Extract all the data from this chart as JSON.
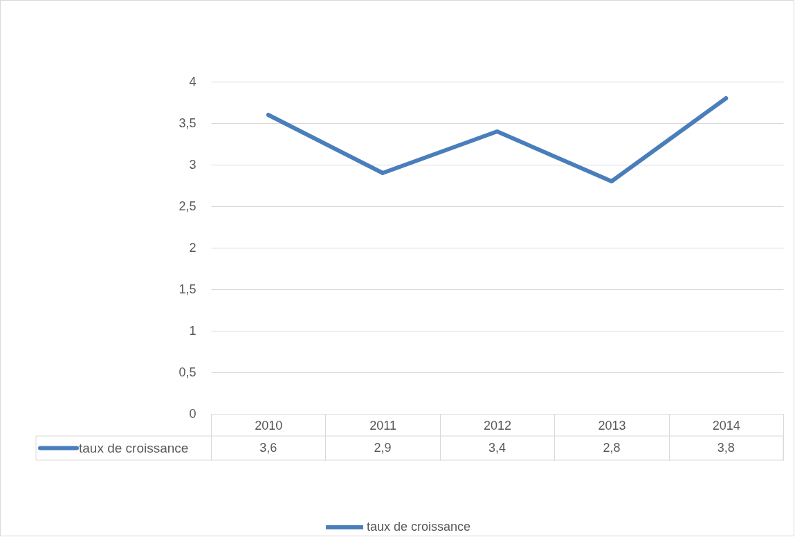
{
  "chart_data": {
    "type": "line",
    "categories": [
      "2010",
      "2011",
      "2012",
      "2013",
      "2014"
    ],
    "series": [
      {
        "name": "taux de croissance",
        "color": "#4a7ebb",
        "values": [
          3.6,
          2.9,
          3.4,
          2.8,
          3.8
        ],
        "value_labels": [
          "3,6",
          "2,9",
          "3,4",
          "2,8",
          "3,8"
        ]
      }
    ],
    "ylim": [
      0,
      4
    ],
    "yticks": [
      0,
      {
        "value": 0.5,
        "label": "0,5"
      },
      1,
      {
        "value": 1.5,
        "label": "1,5"
      },
      2,
      {
        "value": 2.5,
        "label": "2,5"
      },
      3,
      {
        "value": 3.5,
        "label": "3,5"
      },
      4
    ],
    "grid": "y",
    "legend": "bottom"
  }
}
